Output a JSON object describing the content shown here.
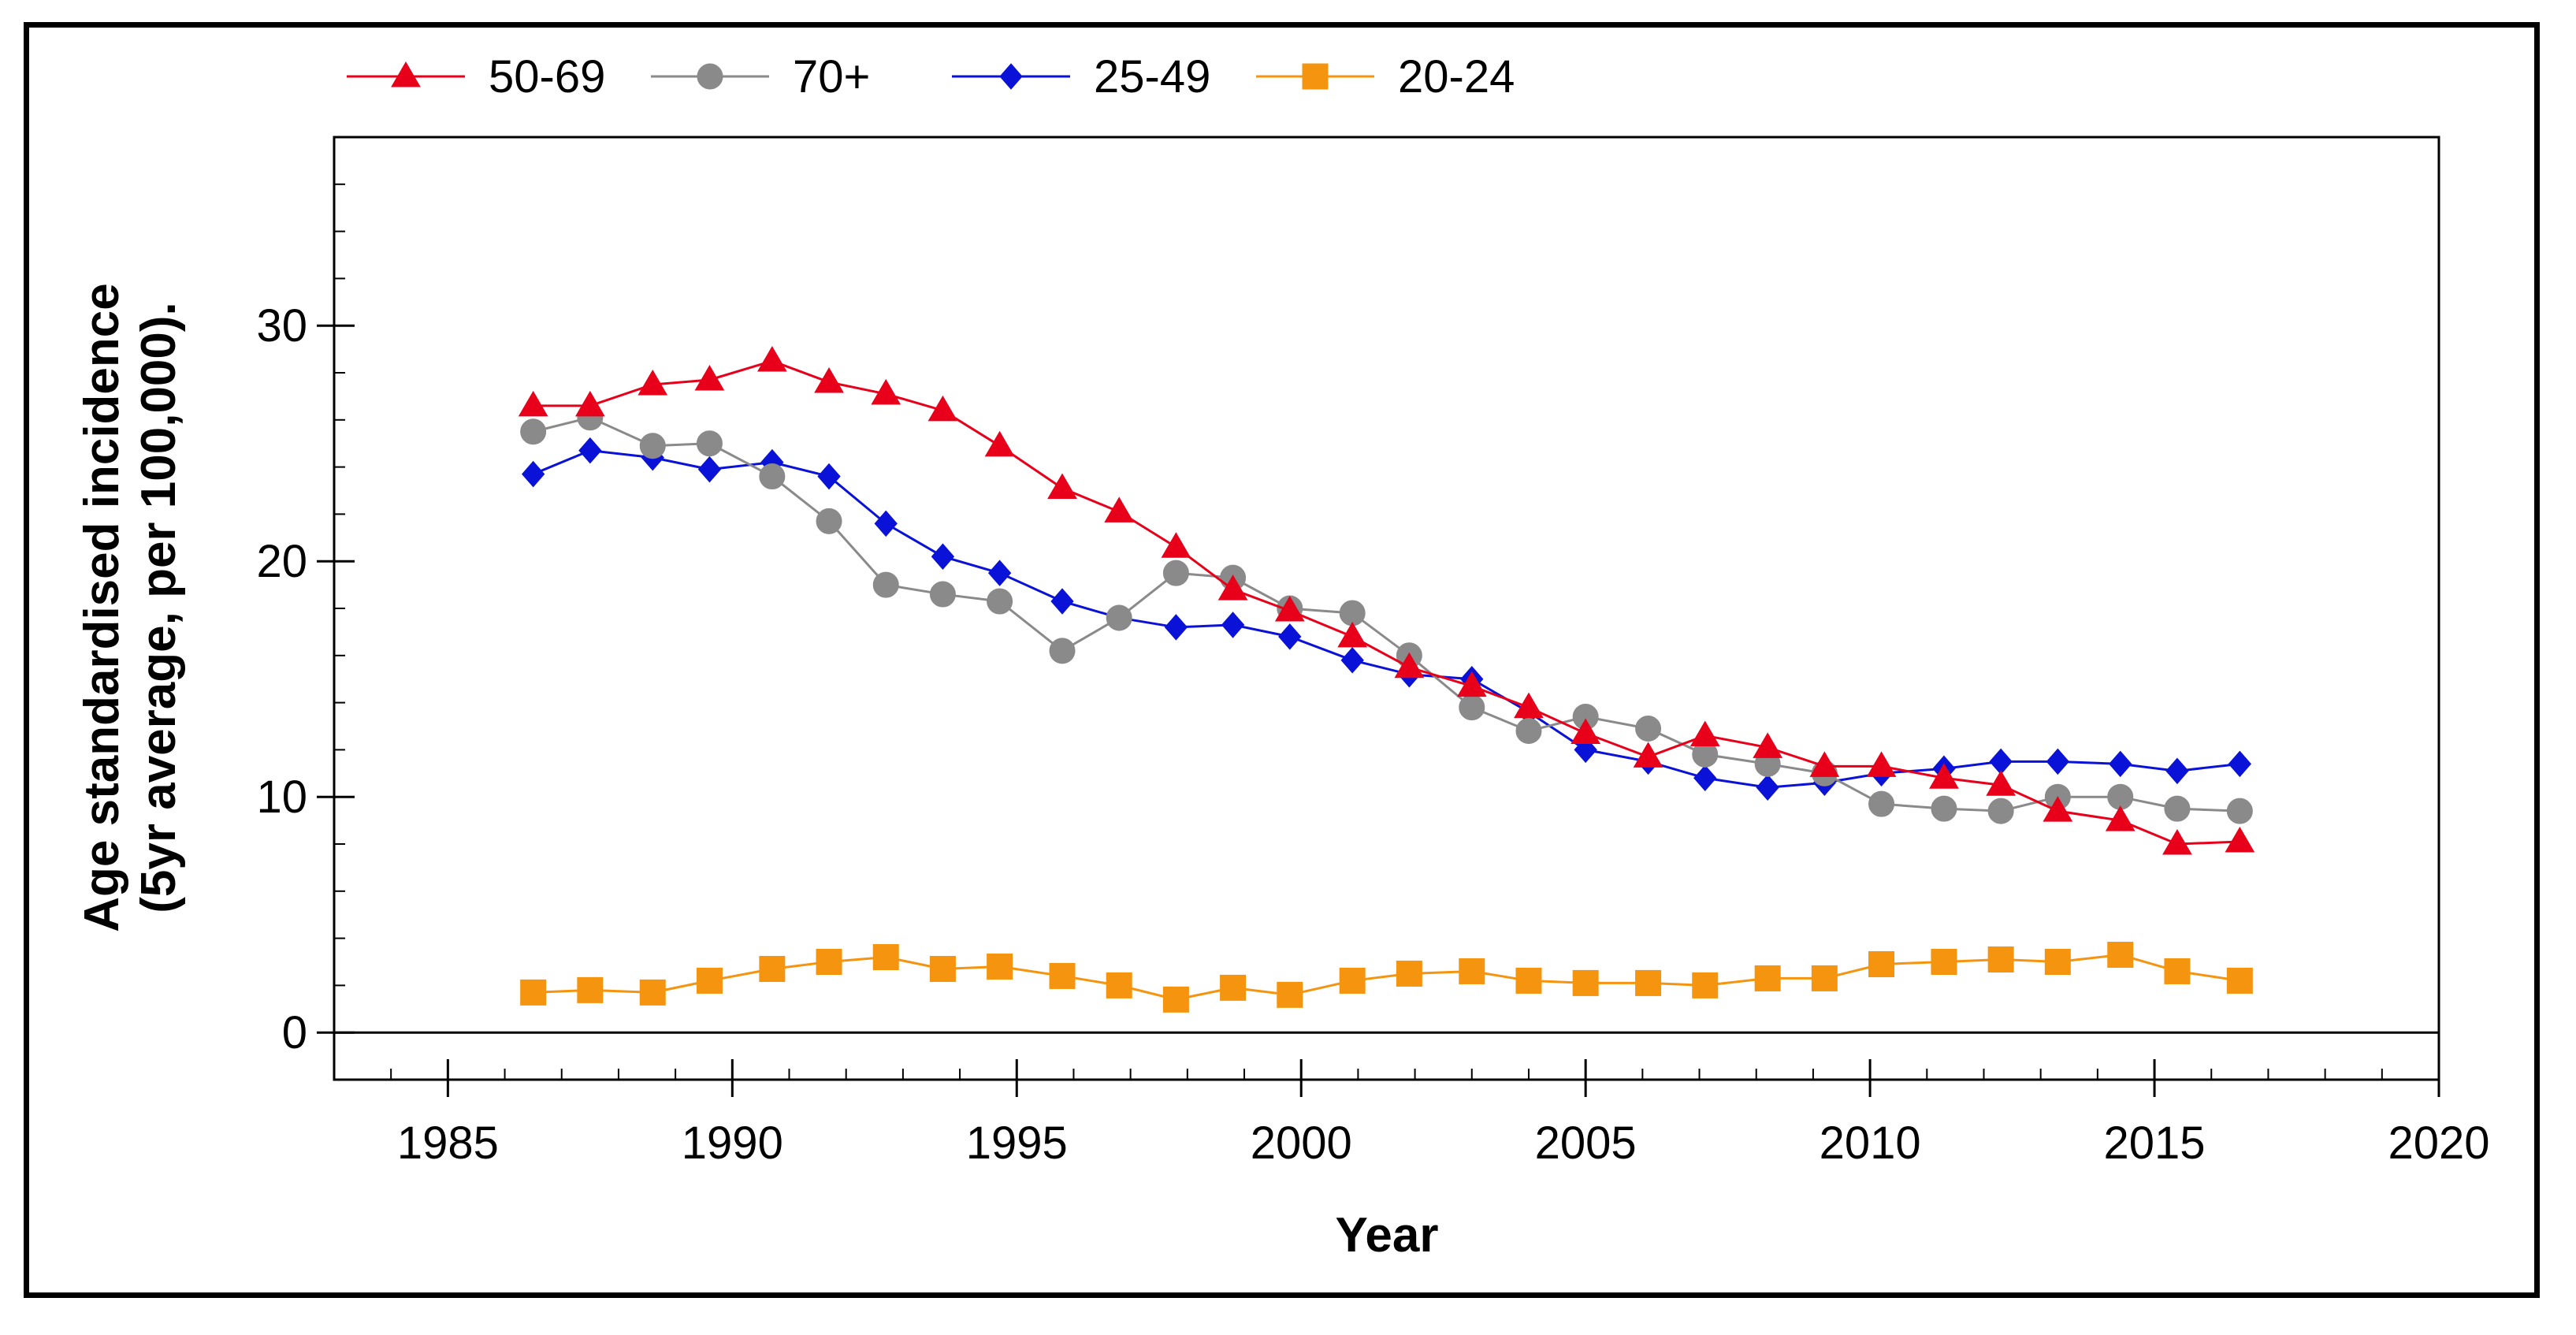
{
  "chart_data": {
    "type": "line",
    "xlabel": "Year",
    "ylabel_lines": [
      "Age standardised incidence",
      "(5yr average, per 100,000)."
    ],
    "xlim": [
      1983,
      2020
    ],
    "ylim": [
      -2,
      38
    ],
    "x_ticks": [
      1985,
      1990,
      1995,
      2000,
      2005,
      2010,
      2015,
      2020
    ],
    "x_tick_labels": [
      "1985",
      "1990",
      "1995",
      "2000",
      "2005",
      "2010",
      "2015",
      "2020"
    ],
    "y_ticks": [
      0,
      10,
      20,
      30
    ],
    "y_tick_labels": [
      "0",
      "10",
      "20",
      "30"
    ],
    "legend_position": "top-left",
    "x": [
      1986.5,
      1987.5,
      1988.6,
      1989.6,
      1990.7,
      1991.7,
      1992.7,
      1993.7,
      1994.7,
      1995.8,
      1996.8,
      1997.8,
      1998.8,
      1999.8,
      2000.9,
      2001.9,
      2003.0,
      2004.0,
      2005.0,
      2006.1,
      2007.1,
      2008.2,
      2009.2,
      2010.2,
      2011.3,
      2012.3,
      2013.3,
      2014.4,
      2015.4,
      2016.5
    ],
    "series": [
      {
        "name": "50-69",
        "color": "#e8001b",
        "marker": "triangle",
        "values": [
          26.6,
          26.6,
          27.5,
          27.7,
          28.5,
          27.6,
          27.1,
          26.4,
          24.9,
          23.1,
          22.1,
          20.6,
          18.8,
          17.9,
          16.8,
          15.5,
          14.7,
          13.8,
          12.7,
          11.7,
          12.6,
          12.1,
          11.3,
          11.3,
          10.8,
          10.5,
          9.4,
          9.0,
          8.0,
          8.1
        ]
      },
      {
        "name": "70+",
        "color": "#8a8a8a",
        "marker": "circle",
        "values": [
          25.5,
          26.1,
          24.9,
          25.0,
          23.6,
          21.7,
          19.0,
          18.6,
          18.3,
          16.2,
          17.6,
          19.5,
          19.3,
          18.0,
          17.8,
          16.0,
          13.8,
          12.8,
          13.4,
          12.9,
          11.8,
          11.4,
          11.0,
          9.7,
          9.5,
          9.4,
          10.0,
          10.0,
          9.5,
          9.4
        ]
      },
      {
        "name": "25-49",
        "color": "#0a12d8",
        "marker": "diamond",
        "values": [
          23.7,
          24.7,
          24.4,
          23.9,
          24.2,
          23.6,
          21.6,
          20.2,
          19.5,
          18.3,
          17.6,
          17.2,
          17.3,
          16.8,
          15.8,
          15.2,
          15.0,
          13.6,
          12.0,
          11.5,
          10.8,
          10.4,
          10.6,
          11.0,
          11.2,
          11.5,
          11.5,
          11.4,
          11.1,
          11.4
        ]
      },
      {
        "name": "20-24",
        "color": "#f5940f",
        "marker": "square",
        "values": [
          1.7,
          1.8,
          1.7,
          2.2,
          2.7,
          3.0,
          3.2,
          2.7,
          2.8,
          2.4,
          2.0,
          1.4,
          1.9,
          1.6,
          2.2,
          2.5,
          2.6,
          2.2,
          2.1,
          2.1,
          2.0,
          2.3,
          2.3,
          2.9,
          3.0,
          3.1,
          3.0,
          3.3,
          2.6,
          2.2
        ]
      }
    ]
  }
}
